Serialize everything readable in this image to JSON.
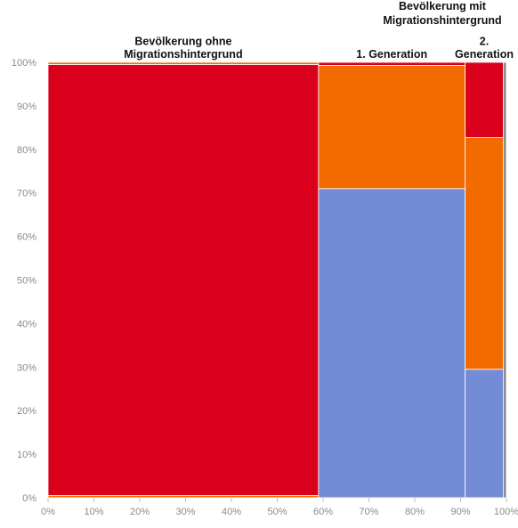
{
  "chart_data": {
    "type": "marimekko",
    "xlim": [
      0,
      100
    ],
    "ylim": [
      0,
      100
    ],
    "x_ticks": [
      "0%",
      "10%",
      "20%",
      "30%",
      "40%",
      "50%",
      "60%",
      "70%",
      "80%",
      "90%",
      "100%"
    ],
    "y_ticks": [
      "0%",
      "10%",
      "20%",
      "30%",
      "40%",
      "50%",
      "60%",
      "70%",
      "80%",
      "90%",
      "100%"
    ],
    "header_labels": [
      "Bevölkerung mit",
      "Migrationshintergrund"
    ],
    "columns": [
      {
        "label_lines": [
          "Bevölkerung ohne",
          "Migrationshintergrund"
        ],
        "width": 59.0,
        "segments": [
          {
            "value": 0.5,
            "color": "#f36a00"
          },
          {
            "value": 99.0,
            "color": "#da001b"
          },
          {
            "value": 0.5,
            "color": "#f36a00"
          }
        ]
      },
      {
        "label_lines": [
          "1. Generation"
        ],
        "width": 32.0,
        "segments": [
          {
            "value": 71.0,
            "color": "#748bd7"
          },
          {
            "value": 28.3,
            "color": "#f36a00"
          },
          {
            "value": 0.7,
            "color": "#da001b"
          }
        ]
      },
      {
        "label_lines": [
          "2.",
          "Generation"
        ],
        "width": 8.3,
        "segments": [
          {
            "value": 29.5,
            "color": "#748bd7"
          },
          {
            "value": 53.2,
            "color": "#f36a00"
          },
          {
            "value": 17.3,
            "color": "#da001b"
          }
        ]
      },
      {
        "label_lines": [],
        "width": 0.7,
        "segments": [
          {
            "value": 100.0,
            "color": "#8c8c8c"
          }
        ]
      }
    ],
    "colors": {
      "red": "#da001b",
      "orange": "#f36a00",
      "blue": "#748bd7",
      "gray": "#8c8c8c",
      "grid": "#dddddd"
    }
  }
}
